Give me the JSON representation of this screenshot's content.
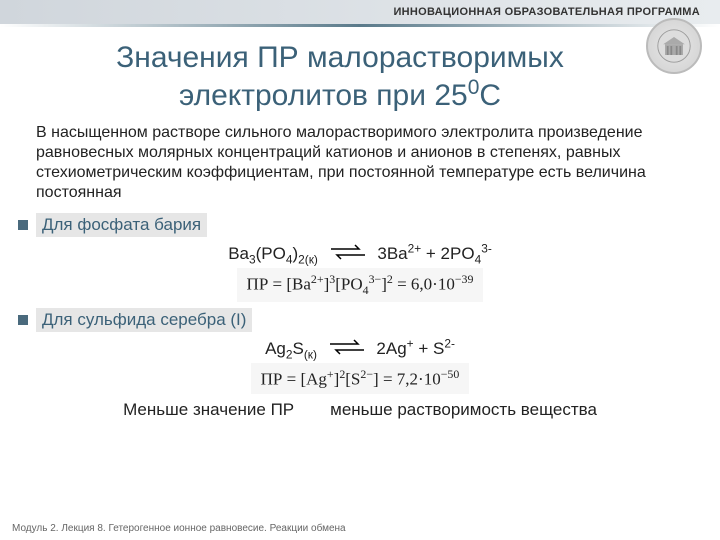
{
  "header": {
    "badge": "ИННОВАЦИОННАЯ ОБРАЗОВАТЕЛЬНАЯ ПРОГРАММА"
  },
  "title": {
    "line1": "Значения ПР малорастворимых",
    "line2_prefix": "электролитов при 25",
    "line2_sup": "0",
    "line2_suffix": "С"
  },
  "intro": "В насыщенном растворе сильного малорастворимого электролита произведение равновесных молярных концентраций катионов и анионов в степенях, равных стехиометрическим коэффициентам, при постоянной температуре есть величина постоянная",
  "examples": [
    {
      "title": "Для фосфата бария",
      "reaction_left": "Ba<sub>3</sub>(PO<sub>4</sub>)<sub>2(к)</sub>",
      "reaction_right": "3Ba<sup>2+</sup> + 2PO<sub>4</sub><sup>3-</sup>",
      "formula": "ПР = [Ba<sup>2+</sup>]<sup>3</sup>[PO<sub>4</sub><sup>3−</sup>]<sup>2</sup> = 6,0·10<sup>−39</sup>"
    },
    {
      "title": "Для сульфида серебра (I)",
      "reaction_left": "Ag<sub>2</sub>S<sub>(к)</sub>",
      "reaction_right": "2Ag<sup>+</sup> + S<sup>2-</sup>",
      "formula": "ПР = [Ag<sup>+</sup>]<sup>2</sup>[S<sup>2−</sup>] = 7,2·10<sup>−50</sup>"
    }
  ],
  "conclusion": {
    "left": "Меньше значение ПР",
    "right": "меньше растворимость вещества"
  },
  "footer": "Модуль 2. Лекция 8. Гетерогенное ионное равновесие. Реакции обмена",
  "colors": {
    "title_color": "#3b6178",
    "header_bg_from": "#d0d6dc",
    "header_bg_to": "#e8ecef",
    "bullet_color": "#4a6a7d",
    "ex_title_bg": "#e6e6e6",
    "formula_bg": "#f6f6f6"
  }
}
